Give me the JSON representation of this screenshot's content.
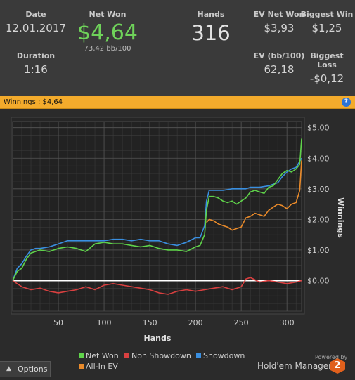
{
  "stats": {
    "date_label": "Date",
    "date_value": "12.01.2017",
    "duration_label": "Duration",
    "duration_value": "1:16",
    "net_won_label": "Net Won",
    "net_won_value": "$4,64",
    "bb100_value": "73,42 bb/100",
    "hands_label": "Hands",
    "hands_value": "316",
    "ev_net_won_label": "EV Net Won",
    "ev_net_won_value": "$3,93",
    "ev_bb100_label": "EV (bb/100)",
    "ev_bb100_value": "62,18",
    "biggest_win_label": "Biggest Win",
    "biggest_win_value": "$1,25",
    "biggest_loss_label": "Biggest Loss",
    "biggest_loss_value": "-$0,12"
  },
  "bar": {
    "label": "Winnings : $4,64",
    "help_icon": "?"
  },
  "chart_data": {
    "type": "line",
    "xlabel": "Hands",
    "ylabel": "Winnings",
    "xlim": [
      0,
      316
    ],
    "ylim": [
      -1,
      5.2
    ],
    "x_ticks": [
      "50",
      "100",
      "150",
      "200",
      "250",
      "300"
    ],
    "x_tick_values": [
      50,
      100,
      150,
      200,
      250,
      300
    ],
    "y_ticks": [
      "$0,00",
      "$1,00",
      "$2,00",
      "$3,00",
      "$4,00",
      "$5,00"
    ],
    "y_tick_values": [
      0,
      1,
      2,
      3,
      4,
      5
    ],
    "grid": true,
    "legend_position": "bottom",
    "series": [
      {
        "name": "Net Won",
        "color": "#5fd34a",
        "x": [
          0,
          5,
          10,
          15,
          20,
          25,
          30,
          40,
          50,
          60,
          70,
          80,
          90,
          100,
          110,
          120,
          130,
          140,
          150,
          160,
          170,
          180,
          190,
          200,
          205,
          210,
          212,
          215,
          220,
          225,
          230,
          235,
          240,
          245,
          250,
          255,
          260,
          265,
          270,
          275,
          280,
          285,
          290,
          295,
          300,
          305,
          310,
          314,
          316
        ],
        "y": [
          0,
          0.3,
          0.4,
          0.7,
          0.9,
          0.95,
          1.0,
          0.95,
          1.05,
          1.1,
          1.05,
          0.95,
          1.2,
          1.25,
          1.2,
          1.2,
          1.15,
          1.1,
          1.15,
          1.05,
          1.0,
          1.0,
          0.95,
          1.1,
          1.15,
          1.5,
          2.3,
          2.75,
          2.75,
          2.7,
          2.6,
          2.55,
          2.6,
          2.5,
          2.6,
          2.7,
          2.9,
          2.95,
          2.9,
          2.85,
          3.05,
          3.1,
          3.3,
          3.5,
          3.6,
          3.55,
          3.65,
          3.8,
          4.64
        ]
      },
      {
        "name": "Non Showdown",
        "color": "#d94040",
        "x": [
          0,
          10,
          20,
          30,
          40,
          50,
          60,
          70,
          80,
          90,
          100,
          110,
          120,
          130,
          140,
          150,
          160,
          170,
          180,
          190,
          200,
          210,
          220,
          230,
          240,
          250,
          255,
          260,
          270,
          280,
          290,
          300,
          310,
          316
        ],
        "y": [
          0,
          -0.2,
          -0.3,
          -0.25,
          -0.35,
          -0.4,
          -0.35,
          -0.3,
          -0.2,
          -0.3,
          -0.15,
          -0.1,
          -0.15,
          -0.2,
          -0.25,
          -0.3,
          -0.4,
          -0.45,
          -0.35,
          -0.3,
          -0.35,
          -0.3,
          -0.25,
          -0.2,
          -0.3,
          -0.2,
          0.05,
          0.1,
          -0.05,
          0.0,
          -0.05,
          -0.1,
          -0.05,
          0.0
        ]
      },
      {
        "name": "Showdown",
        "color": "#3a8fe0",
        "x": [
          0,
          5,
          10,
          15,
          20,
          25,
          30,
          40,
          50,
          60,
          70,
          80,
          90,
          100,
          110,
          120,
          130,
          140,
          150,
          160,
          170,
          180,
          190,
          200,
          205,
          210,
          212,
          215,
          220,
          230,
          240,
          250,
          255,
          260,
          270,
          280,
          290,
          295,
          300,
          305,
          310,
          316
        ],
        "y": [
          0,
          0.4,
          0.55,
          0.8,
          1.0,
          1.05,
          1.05,
          1.1,
          1.2,
          1.3,
          1.3,
          1.3,
          1.3,
          1.3,
          1.35,
          1.35,
          1.3,
          1.35,
          1.3,
          1.3,
          1.2,
          1.15,
          1.25,
          1.4,
          1.4,
          1.8,
          2.6,
          2.95,
          2.95,
          2.95,
          3.0,
          3.0,
          3.0,
          3.05,
          3.05,
          3.1,
          3.2,
          3.4,
          3.55,
          3.65,
          3.7,
          4.0
        ]
      },
      {
        "name": "All-In EV",
        "color": "#e98a2a",
        "x": [
          212,
          215,
          220,
          225,
          230,
          235,
          240,
          245,
          250,
          255,
          260,
          265,
          270,
          275,
          280,
          285,
          290,
          295,
          300,
          305,
          310,
          314,
          316
        ],
        "y": [
          1.9,
          2.0,
          1.95,
          1.85,
          1.8,
          1.75,
          1.65,
          1.7,
          1.75,
          2.05,
          2.1,
          2.2,
          2.15,
          2.1,
          2.3,
          2.4,
          2.5,
          2.45,
          2.35,
          2.5,
          2.55,
          2.95,
          3.93
        ]
      }
    ]
  },
  "legend": [
    {
      "name": "Net Won",
      "color": "#5fd34a"
    },
    {
      "name": "Non Showdown",
      "color": "#d94040"
    },
    {
      "name": "Showdown",
      "color": "#3a8fe0"
    },
    {
      "name": "All-In EV",
      "color": "#e98a2a"
    }
  ],
  "footer": {
    "options_label": "Options",
    "powered_label": "Powered by",
    "brand_label": "Hold'em Manager",
    "brand_logo_text": "2"
  }
}
